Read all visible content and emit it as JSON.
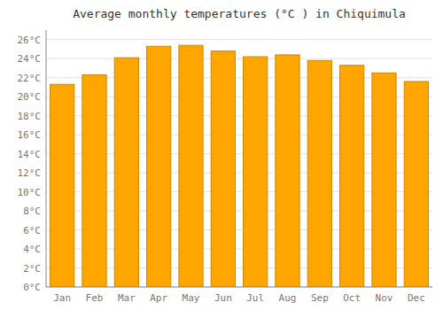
{
  "chart_data": {
    "type": "bar",
    "title": "Average monthly temperatures (°C ) in Chiquimula",
    "categories": [
      "Jan",
      "Feb",
      "Mar",
      "Apr",
      "May",
      "Jun",
      "Jul",
      "Aug",
      "Sep",
      "Oct",
      "Nov",
      "Dec"
    ],
    "values": [
      21.3,
      22.3,
      24.1,
      25.3,
      25.4,
      24.8,
      24.2,
      24.4,
      23.8,
      23.3,
      22.5,
      21.6
    ],
    "color": "#FFA500",
    "ylim": [
      0,
      27
    ],
    "yticks": [
      {
        "value": 0,
        "label": "0°C"
      },
      {
        "value": 2,
        "label": "2°C"
      },
      {
        "value": 4,
        "label": "4°C"
      },
      {
        "value": 6,
        "label": "6°C"
      },
      {
        "value": 8,
        "label": "8°C"
      },
      {
        "value": 10,
        "label": "10°C"
      },
      {
        "value": 12,
        "label": "12°C"
      },
      {
        "value": 14,
        "label": "14°C"
      },
      {
        "value": 16,
        "label": "16°C"
      },
      {
        "value": 18,
        "label": "18°C"
      },
      {
        "value": 20,
        "label": "20°C"
      },
      {
        "value": 22,
        "label": "22°C"
      },
      {
        "value": 24,
        "label": "24°C"
      },
      {
        "value": 26,
        "label": "26°C"
      }
    ],
    "grid": true
  }
}
